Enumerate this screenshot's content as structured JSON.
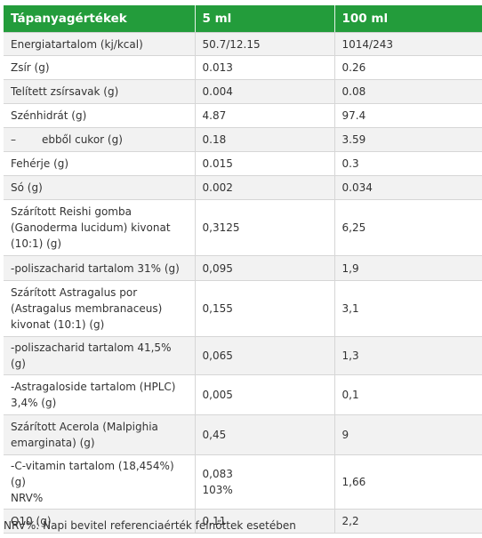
{
  "table": {
    "headers": [
      "Tápanyagértékek",
      "5 ml",
      "100 ml"
    ],
    "rows": [
      {
        "name": "Energiatartalom (kj/kcal)",
        "v5": "50.7/12.15",
        "v100": "1014/243"
      },
      {
        "name": "Zsír (g)",
        "v5": "0.013",
        "v100": "0.26"
      },
      {
        "name": "Telített zsírsavak (g)",
        "v5": "0.004",
        "v100": "0.08"
      },
      {
        "name": "Szénhidrát (g)",
        "v5": "4.87",
        "v100": "97.4"
      },
      {
        "name_prefix": "–",
        "name": "ebből cukor (g)",
        "v5": "0.18",
        "v100": "3.59"
      },
      {
        "name": "Fehérje (g)",
        "v5": "0.015",
        "v100": "0.3"
      },
      {
        "name": "Só (g)",
        "v5": "0.002",
        "v100": "0.034"
      },
      {
        "name": "Szárított Reishi gomba (Ganoderma lucidum) kivonat (10:1) (g)",
        "v5": "0,3125",
        "v100": "6,25"
      },
      {
        "name": "-poliszacharid tartalom 31% (g)",
        "v5": "0,095",
        "v100": "1,9"
      },
      {
        "name": "Szárított Astragalus por (Astragalus membranaceus) kivonat (10:1) (g)",
        "v5": "0,155",
        "v100": "3,1"
      },
      {
        "name": "-poliszacharid tartalom 41,5% (g)",
        "v5": "0,065",
        "v100": "1,3"
      },
      {
        "name": "-Astragaloside tartalom (HPLC) 3,4% (g)",
        "v5": "0,005",
        "v100": "0,1"
      },
      {
        "name": "Szárított Acerola (Malpighia emarginata) (g)",
        "v5": "0,45",
        "v100": "9"
      },
      {
        "name": "-C-vitamin tartalom (18,454%) (g)",
        "name2": "NRV%",
        "v5": "0,083",
        "v5b": "103%",
        "v100": "1,66"
      },
      {
        "name": "Q10 (g)",
        "v5": "0,11",
        "v100": "2,2"
      }
    ]
  },
  "footnote": "NRV%: Napi bevitel referenciaérték felnőttek esetében"
}
